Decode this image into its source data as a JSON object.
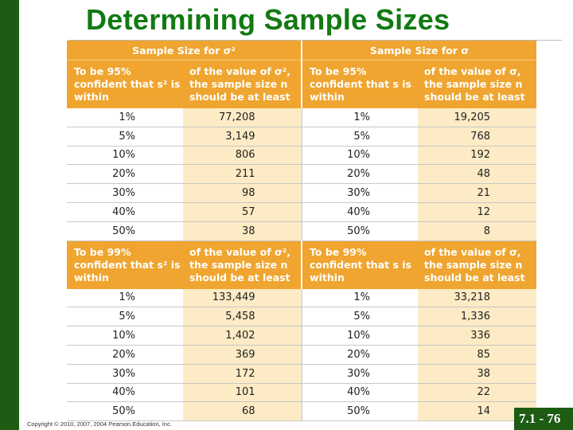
{
  "title": "Determining Sample Sizes",
  "table": {
    "top_headers": [
      "Sample Size for σ²",
      "Sample Size for σ"
    ],
    "sections": [
      {
        "headers": [
          "To be 95% confident that s² is within",
          "of the value of σ², the sample size n should be at least",
          "To be 95% confident that s is within",
          "of the value of σ, the sample size n should be at least"
        ],
        "rows": [
          [
            "1%",
            "77,208",
            "1%",
            "19,205"
          ],
          [
            "5%",
            "3,149",
            "5%",
            "768"
          ],
          [
            "10%",
            "806",
            "10%",
            "192"
          ],
          [
            "20%",
            "211",
            "20%",
            "48"
          ],
          [
            "30%",
            "98",
            "30%",
            "21"
          ],
          [
            "40%",
            "57",
            "40%",
            "12"
          ],
          [
            "50%",
            "38",
            "50%",
            "8"
          ]
        ]
      },
      {
        "headers": [
          "To be 99% confident that s² is within",
          "of the value of σ², the sample size n should be at least",
          "To be 99% confident that s is within",
          "of the value of σ, the sample size n should be at least"
        ],
        "rows": [
          [
            "1%",
            "133,449",
            "1%",
            "33,218"
          ],
          [
            "5%",
            "5,458",
            "5%",
            "1,336"
          ],
          [
            "10%",
            "1,402",
            "10%",
            "336"
          ],
          [
            "20%",
            "369",
            "20%",
            "85"
          ],
          [
            "30%",
            "172",
            "30%",
            "38"
          ],
          [
            "40%",
            "101",
            "40%",
            "22"
          ],
          [
            "50%",
            "68",
            "50%",
            "14"
          ]
        ]
      }
    ]
  },
  "footer": {
    "copyright": "Copyright © 2010, 2007, 2004 Pearson Education, Inc.",
    "slide_number": "7.1 - 76"
  },
  "colors": {
    "title": "#127a12",
    "sidebar": "#1d5c12",
    "header_fill": "#efa52f",
    "value_fill": "#fcebc4"
  }
}
